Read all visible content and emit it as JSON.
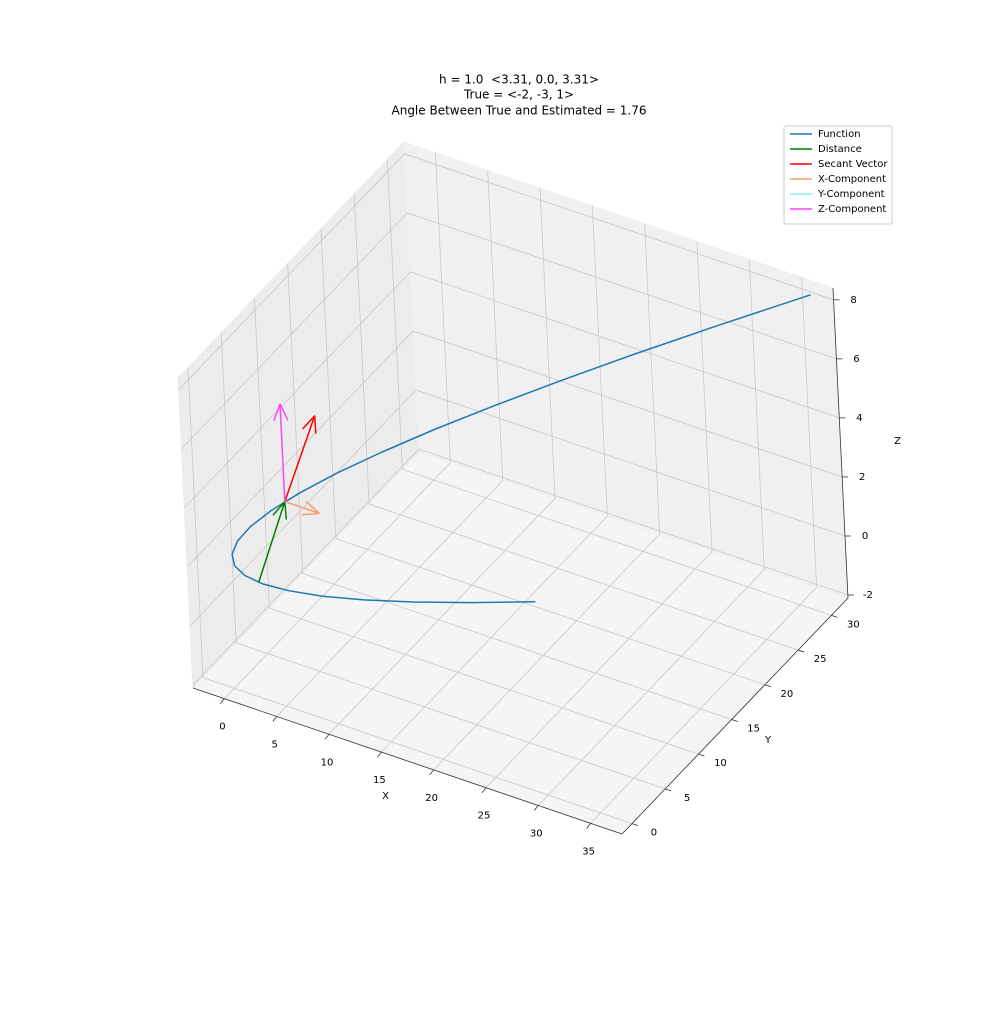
{
  "chart_data": {
    "type": "line3d",
    "title": [
      "h = 1.0  <3.31, 0.0, 3.31>",
      "True = <-2, -3, 1>",
      "Angle Between True and Estimated = 1.76"
    ],
    "xlabel": "X",
    "ylabel": "Y",
    "zlabel": "Z",
    "xlim": [
      -3,
      38
    ],
    "ylim": [
      -1.5,
      32.5
    ],
    "zlim": [
      -2.1,
      8.4
    ],
    "xticks": [
      0,
      5,
      10,
      15,
      20,
      25,
      30,
      35
    ],
    "yticks": [
      0,
      5,
      10,
      15,
      20,
      25,
      30
    ],
    "zticks": [
      -2,
      0,
      2,
      4,
      6,
      8
    ],
    "grid": true,
    "legend": "upper right",
    "series": [
      {
        "name": "Function",
        "color": "#1f77b4",
        "kind": "line",
        "x": [
          20.25,
          16,
          12.25,
          9,
          6.25,
          4,
          2.25,
          1,
          0.25,
          0,
          0.25,
          1,
          2.25,
          4,
          6.25,
          9,
          12.25,
          16,
          20.25,
          25,
          30.25,
          36
        ],
        "y": [
          13.85,
          10.81,
          8.17,
          5.91,
          4.05,
          2.58,
          1.5,
          0.81,
          0.51,
          0.6,
          1.08,
          1.96,
          3.22,
          4.88,
          6.93,
          9.37,
          12.19,
          15.41,
          19.02,
          23.03,
          27.42,
          32.2
        ],
        "z": [
          0.02,
          0.19,
          0.38,
          0.59,
          0.82,
          1.08,
          1.35,
          1.65,
          1.96,
          2.3,
          2.66,
          3.04,
          3.44,
          3.86,
          4.31,
          4.77,
          5.26,
          5.76,
          6.29,
          6.84,
          7.41,
          8.0
        ]
      },
      {
        "name": "Distance",
        "color": "#008000",
        "kind": "arrow",
        "x": [
          1.96,
          3.06
        ],
        "y": [
          1.33,
          4.0
        ],
        "z": [
          1.41,
          3.65
        ]
      },
      {
        "name": "Secant Vector",
        "color": "#ff0000",
        "kind": "arrow",
        "x": [
          3.06,
          6.37
        ],
        "y": [
          4.0,
          4.0
        ],
        "z": [
          3.65,
          6.96
        ]
      },
      {
        "name": "X-Component",
        "color": "#fa9a70",
        "kind": "arrow",
        "x": [
          3.06,
          6.37
        ],
        "y": [
          4.0,
          4.0
        ],
        "z": [
          3.65,
          3.65
        ]
      },
      {
        "name": "Y-Component",
        "color": "#88ecfa",
        "kind": "arrow",
        "x": [
          3.06,
          3.06
        ],
        "y": [
          4.0,
          4.0
        ],
        "z": [
          3.65,
          3.65
        ]
      },
      {
        "name": "Z-Component",
        "color": "#ff44ff",
        "kind": "arrow",
        "x": [
          3.06,
          3.06
        ],
        "y": [
          4.0,
          4.0
        ],
        "z": [
          3.65,
          6.96
        ]
      }
    ]
  }
}
